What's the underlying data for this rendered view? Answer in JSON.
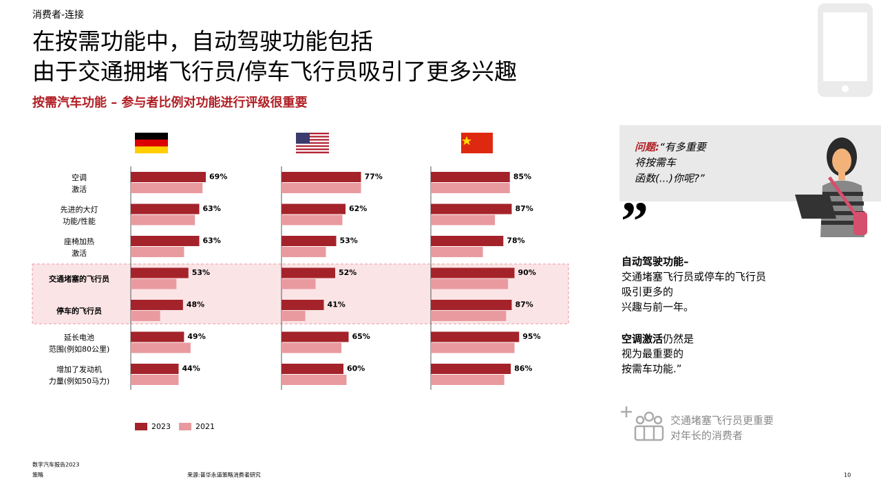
{
  "header": "消费者-连接",
  "title": [
    "在按需功能中，自动驾驶功能包括",
    "由于交通拥堵飞行员/停车飞行员吸引了更多兴趣"
  ],
  "subtitle": "按需汽车功能 – 参与者比例对功能进行评级很重要",
  "chart_data": {
    "type": "bar",
    "orientation": "horizontal",
    "categories": [
      [
        "空调",
        "激活"
      ],
      [
        "先进的大灯",
        "功能/性能"
      ],
      [
        "座椅加热",
        "激活"
      ],
      [
        "交通堵塞的飞行员"
      ],
      [
        "停车的飞行员"
      ],
      [
        "延长电池",
        "范围(例如80公里)"
      ],
      [
        "增加了发动机",
        "力量(例如50马力)"
      ]
    ],
    "series": [
      {
        "name": "2023",
        "color": "#a4232a"
      },
      {
        "name": "2021",
        "color": "#e99a9f"
      }
    ],
    "panels": [
      {
        "xlim": [
          0,
          100
        ],
        "series": [
          {
            "values": [
              69,
              63,
              63,
              53,
              48,
              49,
              44
            ],
            "value_labels": [
              "69%",
              "63%",
              "63%",
              "53%",
              "48%",
              "49%",
              "44%"
            ]
          },
          {
            "values": [
              66,
              59,
              49,
              42,
              27,
              55,
              44
            ]
          }
        ]
      },
      {
        "xlim": [
          0,
          100
        ],
        "series": [
          {
            "values": [
              77,
              62,
              53,
              52,
              41,
              65,
              60
            ],
            "value_labels": [
              "77%",
              "62%",
              "53%",
              "52%",
              "41%",
              "65%",
              "60%"
            ]
          },
          {
            "values": [
              77,
              59,
              43,
              33,
              23,
              58,
              63
            ]
          }
        ]
      },
      {
        "xlim": [
          0,
          100
        ],
        "series": [
          {
            "values": [
              85,
              87,
              78,
              90,
              87,
              95,
              86
            ],
            "value_labels": [
              "85%",
              "87%",
              "78%",
              "90%",
              "87%",
              "95%",
              "86%"
            ]
          },
          {
            "values": [
              85,
              69,
              56,
              83,
              81,
              90,
              79
            ]
          }
        ]
      }
    ]
  },
  "question": {
    "label": "问题:",
    "lines": [
      "“有多重要",
      "将按需车",
      "函数(...)你呢?”"
    ]
  },
  "quote": {
    "heading": "自动驾驶功能–",
    "lines": [
      "交通堵塞飞行员或停车的飞行员",
      "吸引更多的",
      "兴趣与前一年。"
    ],
    "bold2": "空调激活",
    "rest2": "仍然是",
    "lines2": [
      "视为最重要的",
      "按需车功能.”"
    ]
  },
  "insight": [
    "交通堵塞飞行员更重要",
    "对年长的消费者"
  ],
  "footer": {
    "report": "数字汽车报告2023",
    "section": "策略",
    "source": "来源:普华永道策略消费者研究",
    "page": "10"
  }
}
